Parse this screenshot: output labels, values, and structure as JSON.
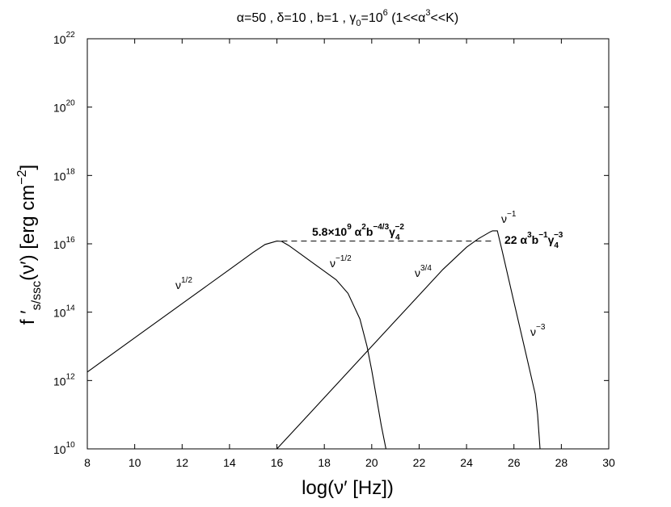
{
  "chart_data": {
    "type": "line",
    "title": {
      "a": "α=50 , δ=10 , b=1 , γ",
      "a_sub": "0",
      "b": "=10",
      "b_sup": "6",
      "c": " (1<<α",
      "c_sup": "3",
      "d": "<<K)"
    },
    "xlabel": "log(ν′  [Hz])",
    "ylabel": {
      "prefix": "f ′",
      "sub": "s/ssc",
      "suffix": "(ν′)  [erg cm",
      "sup": "−2",
      "end": "]"
    },
    "xlim": [
      8,
      30
    ],
    "ylim_log10": [
      10,
      22
    ],
    "y_scale": "log",
    "x_ticks": [
      "8",
      "10",
      "12",
      "14",
      "16",
      "18",
      "20",
      "22",
      "24",
      "26",
      "28",
      "30"
    ],
    "y_tick_base": "10",
    "y_tick_exponents": [
      "10",
      "12",
      "14",
      "16",
      "18",
      "20",
      "22"
    ],
    "grid": false,
    "series": [
      {
        "x": [
          8,
          10,
          12,
          14,
          15,
          15.5,
          16,
          16.2,
          16.5,
          17,
          17.5,
          18,
          18.5,
          19,
          19.5,
          19.8,
          20,
          20.2,
          20.4,
          20.6
        ],
        "log10_y": [
          12.25,
          13.25,
          14.25,
          15.25,
          15.75,
          15.98,
          16.08,
          16.07,
          15.95,
          15.7,
          15.45,
          15.2,
          14.95,
          14.55,
          13.8,
          13.0,
          12.3,
          11.5,
          10.7,
          10.0
        ]
      },
      {
        "x": [
          16.0,
          17,
          18,
          19,
          20,
          21,
          22,
          23,
          24,
          24.5,
          25,
          25.1,
          25.3,
          25.5,
          26.0,
          26.5,
          26.9,
          27.0,
          27.1
        ],
        "log10_y": [
          10.0,
          10.75,
          11.5,
          12.25,
          13.0,
          13.75,
          14.5,
          15.25,
          15.9,
          16.15,
          16.35,
          16.38,
          16.38,
          15.8,
          14.3,
          12.8,
          11.6,
          11.0,
          10.0
        ]
      }
    ],
    "dashed_line": {
      "x": [
        16.2,
        25.2
      ],
      "log10_y": 16.08
    },
    "annotations": {
      "nu_half": {
        "base": "ν",
        "sup": "1/2"
      },
      "nu_mhalf": {
        "base": "ν",
        "sup": "−1/2"
      },
      "nu_34": {
        "base": "ν",
        "sup": "3/4"
      },
      "nu_m1": {
        "base": "ν",
        "sup": "−1"
      },
      "nu_m3": {
        "base": "ν",
        "sup": "−3"
      },
      "peak_s": {
        "a": "5.8×10",
        "a_sup": "9",
        "b": " α",
        "b_sup": "2",
        "c": "b",
        "c_sup": "−4/3",
        "d": "γ",
        "d_sub": "4",
        "d_sup": "−2"
      },
      "peak_ssc": {
        "a": "22 α",
        "a_sup": "3",
        "b": "b",
        "b_sup": "−1",
        "c": "γ",
        "c_sub": "4",
        "c_sup": "−3"
      }
    }
  }
}
